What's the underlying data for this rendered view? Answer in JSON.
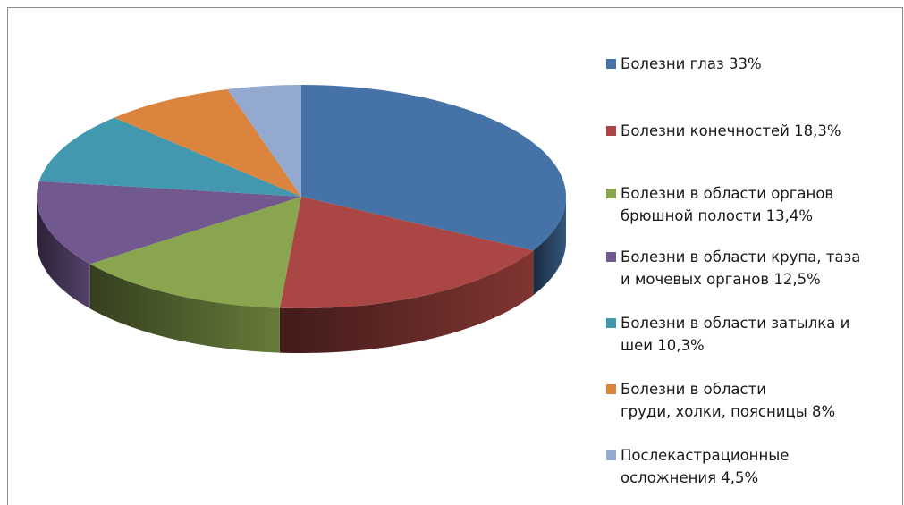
{
  "chart_data": {
    "type": "pie",
    "style": "3d",
    "legend_position": "right",
    "slices": [
      {
        "label": "Болезни глаз 33%",
        "value": 33,
        "color": "#4572a7"
      },
      {
        "label": "Болезни конечностей 18,3%",
        "value": 18.3,
        "color": "#aa4643"
      },
      {
        "label": "Болезни в области органов\nбрюшной полости 13,4%",
        "value": 13.4,
        "color": "#89a54e"
      },
      {
        "label": "Болезни в области крупа, таза\nи мочевых органов 12,5%",
        "value": 12.5,
        "color": "#71588f"
      },
      {
        "label": "Болезни в области затылка и\nшеи 10,3%",
        "value": 10.3,
        "color": "#4198af"
      },
      {
        "label": "Болезни в области\nгруди, холки, поясницы 8%",
        "value": 8,
        "color": "#db843d"
      },
      {
        "label": "Послекастрационные\nосложнения 4,5%",
        "value": 4.5,
        "color": "#93a9cf"
      }
    ]
  }
}
